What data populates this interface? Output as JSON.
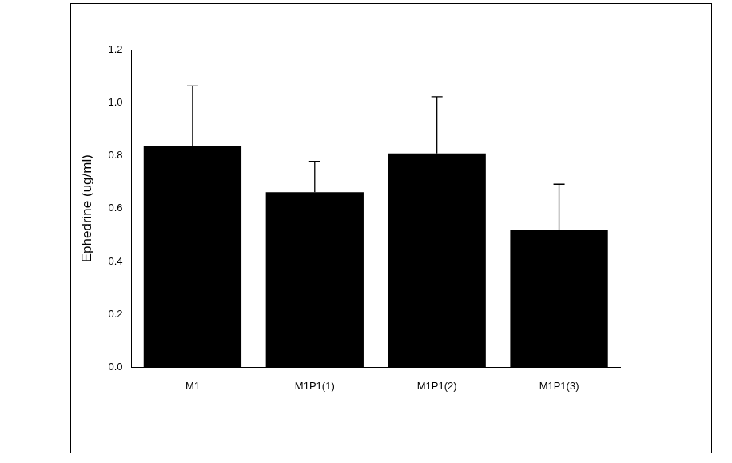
{
  "chart_data": {
    "type": "bar",
    "y_label": "Ephedrine (ug/ml)",
    "categories": [
      "M1",
      "M1P1(1)",
      "M1P1(2)",
      "M1P1(3)"
    ],
    "values": [
      0.835,
      0.662,
      0.808,
      0.52
    ],
    "errors": [
      0.228,
      0.116,
      0.214,
      0.172
    ],
    "color": "#000000",
    "ylim": [
      0,
      1.2
    ],
    "yticks": [
      {
        "value": 0,
        "label": "0.0"
      },
      0.2,
      0.4,
      0.6,
      0.8,
      {
        "value": 1,
        "label": "1.0"
      },
      1.2
    ],
    "grid": false
  }
}
